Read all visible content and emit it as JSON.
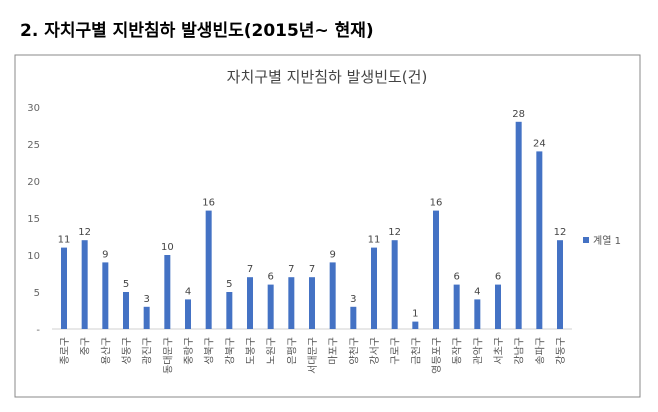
{
  "heading": "2. 자치구별 지반침하 발생빈도(2015년~ 현재)",
  "chart_data": {
    "type": "bar",
    "title": "자치구별 지반침하 발생빈도(건)",
    "categories": [
      "종로구",
      "중구",
      "용산구",
      "성동구",
      "광진구",
      "동대문구",
      "중랑구",
      "성북구",
      "강북구",
      "도봉구",
      "노원구",
      "은평구",
      "서대문구",
      "마포구",
      "양천구",
      "강서구",
      "구로구",
      "금천구",
      "영등포구",
      "동작구",
      "관악구",
      "서초구",
      "강남구",
      "송파구",
      "강동구"
    ],
    "series": [
      {
        "name": "계열 1",
        "values": [
          11,
          12,
          9,
          5,
          3,
          10,
          4,
          16,
          5,
          7,
          6,
          7,
          7,
          9,
          3,
          11,
          12,
          1,
          16,
          6,
          4,
          6,
          28,
          24,
          12
        ],
        "color": "#4472C4"
      }
    ],
    "ylim": [
      0,
      30
    ],
    "yticks": [
      0,
      5,
      10,
      15,
      20,
      25,
      30
    ],
    "ytick_labels": [
      "-",
      "5",
      "10",
      "15",
      "20",
      "25",
      "30"
    ],
    "grid": false,
    "legend": "right",
    "data_labels": true
  }
}
